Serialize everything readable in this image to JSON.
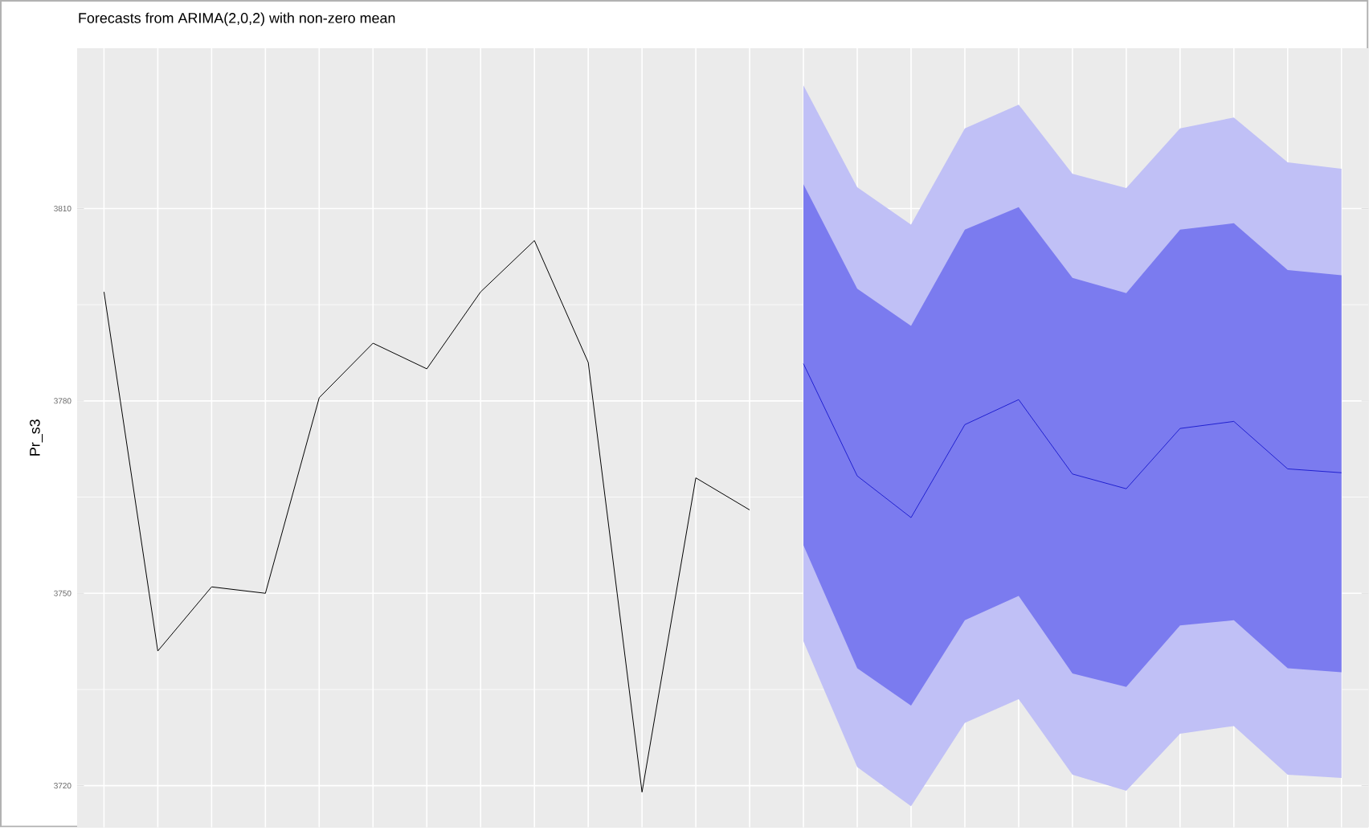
{
  "chart_data": {
    "type": "line",
    "title": "Forecasts from ARIMA(2,0,2) with non-zero mean",
    "ylabel": "Pr_s3",
    "categories": [
      null,
      null,
      null,
      null,
      null,
      null,
      null,
      null,
      null,
      null,
      null,
      null,
      null,
      null,
      null,
      null,
      null,
      null,
      null,
      null,
      null,
      null,
      null,
      null
    ],
    "series": [
      {
        "color": "#000000",
        "values": [
          3797,
          3741,
          3751,
          3750,
          3780.5,
          3789,
          3785,
          3797,
          3805,
          3786,
          3719,
          3768,
          3763,
          null,
          null,
          null,
          null,
          null,
          null,
          null,
          null,
          null,
          null,
          null
        ]
      },
      {
        "color": "#c0c0f6",
        "values": [
          null,
          null,
          null,
          null,
          null,
          null,
          null,
          null,
          null,
          null,
          null,
          null,
          null,
          null,
          null,
          null,
          null,
          null,
          null,
          null,
          null,
          null,
          null,
          null
        ],
        "lower": [
          null,
          null,
          null,
          null,
          null,
          null,
          null,
          null,
          null,
          null,
          null,
          null,
          null,
          3742.5,
          3722.9,
          3716.8,
          3729.8,
          3733.5,
          3721.7,
          3719.2,
          3728.1,
          3729.3,
          3721.7,
          3721.2
        ],
        "upper": [
          null,
          null,
          null,
          null,
          null,
          null,
          null,
          null,
          null,
          null,
          null,
          null,
          null,
          3829.2,
          3813.3,
          3807.5,
          3822.5,
          3826.2,
          3815.4,
          3813.2,
          3822.5,
          3824.2,
          3817.2,
          3816.2
        ]
      },
      {
        "color": "#7b7bef",
        "values": [
          null,
          null,
          null,
          null,
          null,
          null,
          null,
          null,
          null,
          null,
          null,
          null,
          null,
          null,
          null,
          null,
          null,
          null,
          null,
          null,
          null,
          null,
          null,
          null
        ],
        "lower": [
          null,
          null,
          null,
          null,
          null,
          null,
          null,
          null,
          null,
          null,
          null,
          null,
          null,
          3757.5,
          3738.3,
          3732.5,
          3745.8,
          3749.6,
          3737.5,
          3735.4,
          3745,
          3745.8,
          3738.3,
          3737.7
        ],
        "upper": [
          null,
          null,
          null,
          null,
          null,
          null,
          null,
          null,
          null,
          null,
          null,
          null,
          null,
          3813.8,
          3797.5,
          3791.7,
          3806.7,
          3810.2,
          3799.2,
          3796.8,
          3806.7,
          3807.7,
          3800.4,
          3799.6
        ]
      },
      {
        "color": "#2020d0",
        "values": [
          null,
          null,
          null,
          null,
          null,
          null,
          null,
          null,
          null,
          null,
          null,
          null,
          null,
          3785.8,
          3768.3,
          3761.8,
          3776.3,
          3780.2,
          3768.6,
          3766.3,
          3775.7,
          3776.8,
          3769.4,
          3768.8
        ]
      }
    ],
    "ylim": [
      3713.5,
      3835
    ],
    "yticks": [
      3720,
      3750,
      3780,
      3810
    ],
    "grid": true,
    "tick_labels": "y"
  }
}
